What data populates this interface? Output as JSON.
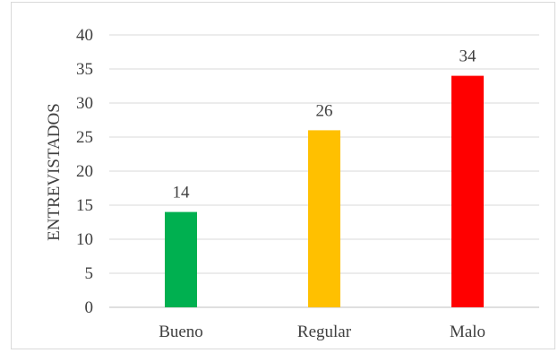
{
  "chart_data": {
    "type": "bar",
    "categories": [
      "Bueno",
      "Regular",
      "Malo"
    ],
    "values": [
      14,
      26,
      34
    ],
    "data_labels": [
      "14",
      "26",
      "34"
    ],
    "colors": [
      "#00b050",
      "#ffc000",
      "#ff0000"
    ],
    "title": "",
    "xlabel": "",
    "ylabel": "ENTREVISTADOS",
    "ylim": [
      0,
      40
    ],
    "yticks": [
      0,
      5,
      10,
      15,
      20,
      25,
      30,
      35,
      40
    ],
    "ytick_labels": [
      "0",
      "5",
      "10",
      "15",
      "20",
      "25",
      "30",
      "35",
      "40"
    ],
    "grid": true,
    "legend": "none"
  }
}
